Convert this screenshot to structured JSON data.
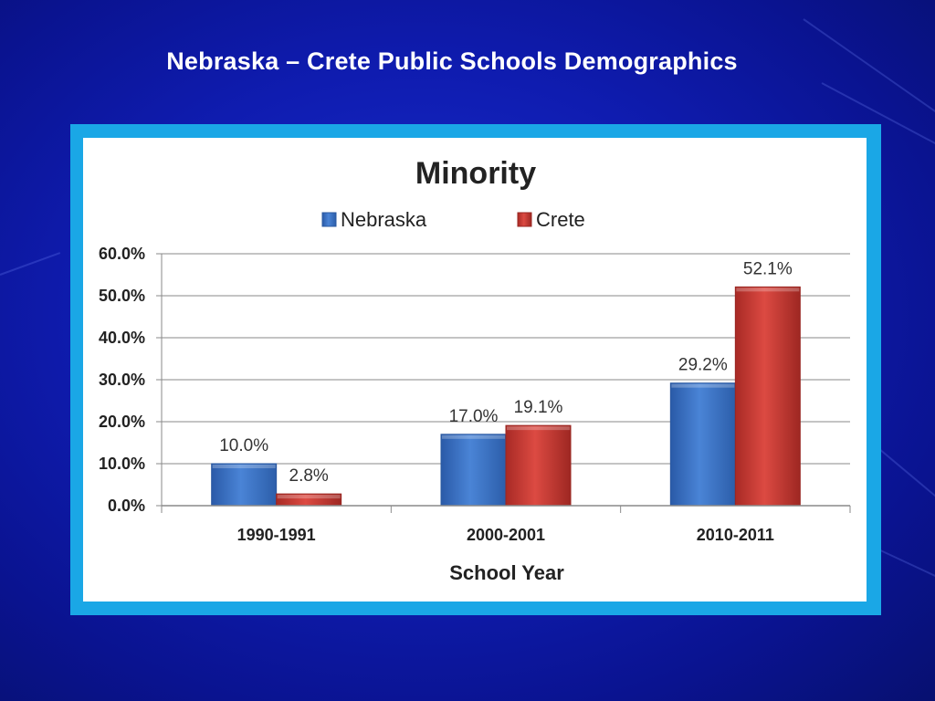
{
  "slide": {
    "title": "Nebraska – Crete Public Schools Demographics"
  },
  "colors": {
    "background": "#0f1cb0",
    "frame": "#1aa7e6",
    "nebraska": "#3d74c7",
    "crete": "#cc3a33"
  },
  "chart_data": {
    "type": "bar",
    "title": "Minority",
    "xlabel": "School Year",
    "ylabel": "",
    "categories": [
      "1990-1991",
      "2000-2001",
      "2010-2011"
    ],
    "series": [
      {
        "name": "Nebraska",
        "values": [
          10.0,
          17.0,
          29.2
        ],
        "labels": [
          "10.0%",
          "17.0%",
          "29.2%"
        ]
      },
      {
        "name": "Crete",
        "values": [
          2.8,
          19.1,
          52.1
        ],
        "labels": [
          "2.8%",
          "19.1%",
          "52.1%"
        ]
      }
    ],
    "ylim": [
      0,
      60
    ],
    "yticks": [
      "0.0%",
      "10.0%",
      "20.0%",
      "30.0%",
      "40.0%",
      "50.0%",
      "60.0%"
    ],
    "grid": true,
    "legend": "top-center"
  }
}
